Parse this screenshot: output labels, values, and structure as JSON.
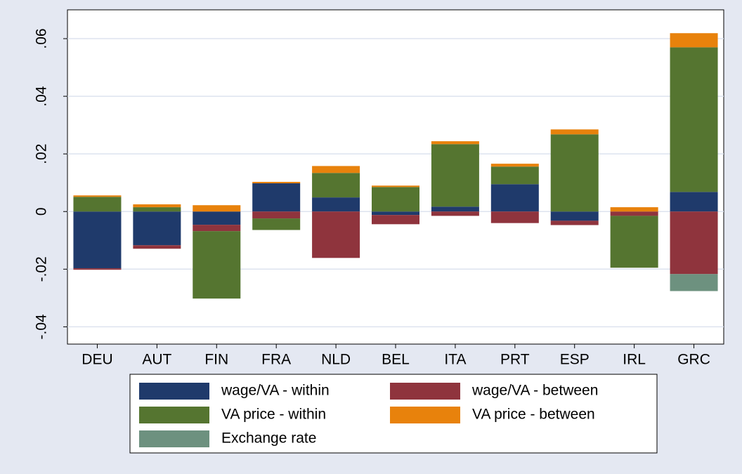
{
  "chart_data": {
    "type": "stacked_bar",
    "categories": [
      "DEU",
      "AUT",
      "FIN",
      "FRA",
      "NLD",
      "BEL",
      "ITA",
      "PRT",
      "ESP",
      "IRL",
      "GRC"
    ],
    "series": [
      {
        "name": "wage/VA - within",
        "color": "#1f3a6b",
        "values": [
          -0.0197,
          -0.0117,
          -0.0046,
          0.0098,
          0.0049,
          -0.0012,
          0.0017,
          0.0095,
          -0.0032,
          0,
          0.0068
        ]
      },
      {
        "name": "wage/VA - between",
        "color": "#8f343d",
        "values": [
          -0.0005,
          -0.0012,
          -0.0022,
          -0.0024,
          -0.0161,
          -0.0032,
          -0.0015,
          -0.004,
          -0.0015,
          -0.0015,
          -0.0217
        ]
      },
      {
        "name": "VA price - within",
        "color": "#557530",
        "values": [
          0.0051,
          0.0015,
          -0.0234,
          -0.004,
          0.0085,
          0.0085,
          0.0217,
          0.0061,
          0.0268,
          -0.018,
          0.0502
        ]
      },
      {
        "name": "VA price - between",
        "color": "#e8820c",
        "values": [
          0.0005,
          0.001,
          0.0022,
          0.0005,
          0.0024,
          0.0005,
          0.001,
          0.001,
          0.0017,
          0.0015,
          0.0049
        ]
      },
      {
        "name": "Exchange rate",
        "color": "#6d917f",
        "values": [
          0,
          0,
          0,
          0,
          0,
          0,
          0,
          0,
          0,
          0,
          -0.0059
        ]
      }
    ],
    "ylim": [
      -0.046,
      0.07
    ],
    "yticks": [
      {
        "value": -0.04,
        "label": "-.04"
      },
      {
        "value": -0.02,
        "label": "-.02"
      },
      0,
      {
        "value": 0.02,
        "label": ".02"
      },
      {
        "value": 0.04,
        "label": ".04"
      },
      {
        "value": 0.06,
        "label": ".06"
      }
    ],
    "grid": true
  }
}
